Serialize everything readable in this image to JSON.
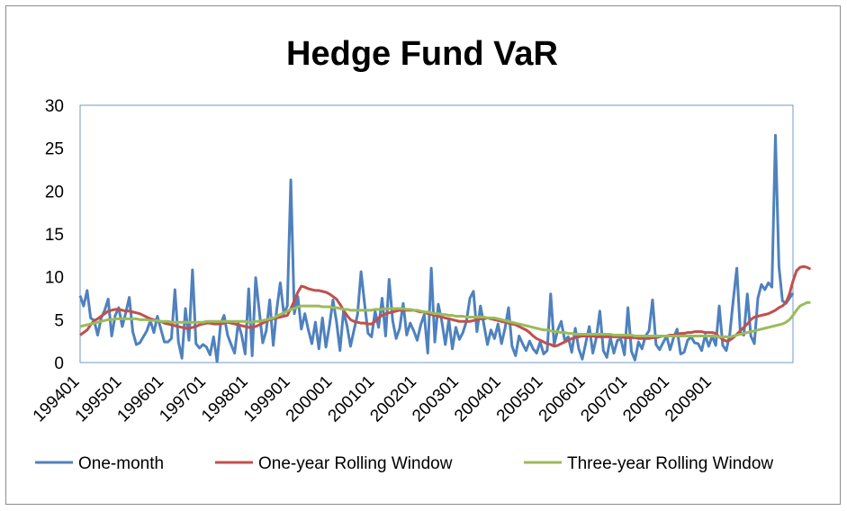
{
  "chart_data": {
    "type": "line",
    "title": "Hedge Fund VaR",
    "xlabel": "",
    "ylabel": "",
    "ylim": [
      0,
      30
    ],
    "y_ticks": [
      0,
      5,
      10,
      15,
      20,
      25,
      30
    ],
    "x_start": "199401",
    "x_end": "200912",
    "x_tick_labels": [
      "199401",
      "199501",
      "199601",
      "199701",
      "199801",
      "199901",
      "200001",
      "200101",
      "200201",
      "200301",
      "200401",
      "200501",
      "200601",
      "200701",
      "200801",
      "200901"
    ],
    "grid": false,
    "legend_position": "bottom",
    "series": [
      {
        "name": "One-month",
        "color": "#4f81bd",
        "values": [
          7.8,
          6.6,
          8.4,
          5.2,
          4.9,
          3.2,
          5.2,
          6.1,
          7.4,
          3.1,
          5.5,
          6.4,
          4.2,
          5.8,
          7.6,
          3.6,
          2.1,
          2.3,
          3.0,
          3.7,
          4.9,
          3.5,
          5.4,
          3.9,
          2.4,
          2.4,
          2.8,
          8.5,
          2.4,
          0.5,
          6.3,
          2.6,
          10.8,
          2.2,
          1.7,
          2.1,
          1.8,
          0.9,
          3.0,
          0.1,
          4.5,
          5.5,
          3.2,
          2.1,
          1.1,
          4.6,
          3.2,
          1.0,
          8.6,
          0.8,
          9.9,
          6.1,
          2.3,
          3.7,
          7.3,
          2.0,
          6.2,
          9.3,
          5.7,
          6.6,
          21.3,
          5.7,
          7.7,
          3.9,
          5.7,
          3.8,
          2.2,
          4.7,
          1.6,
          5.2,
          1.8,
          4.3,
          7.3,
          4.8,
          1.4,
          6.0,
          4.3,
          1.9,
          3.8,
          5.6,
          10.6,
          6.9,
          3.4,
          3.0,
          6.0,
          4.1,
          7.5,
          3.1,
          9.7,
          4.9,
          2.8,
          4.0,
          6.9,
          3.2,
          4.6,
          3.7,
          2.6,
          4.4,
          5.6,
          1.1,
          11.0,
          2.4,
          6.8,
          4.8,
          2.1,
          5.0,
          1.6,
          4.1,
          2.7,
          3.5,
          4.8,
          7.5,
          8.3,
          3.6,
          6.6,
          4.4,
          2.1,
          3.8,
          2.8,
          4.5,
          2.2,
          4.0,
          6.4,
          1.9,
          0.8,
          3.1,
          2.2,
          1.4,
          2.5,
          1.6,
          1.1,
          2.4,
          1.0,
          1.4,
          8.0,
          2.1,
          3.8,
          4.8,
          2.6,
          3.0,
          1.2,
          4.0,
          1.6,
          0.4,
          2.3,
          4.2,
          1.1,
          2.9,
          6.0,
          1.4,
          0.6,
          2.9,
          1.1,
          2.6,
          2.7,
          0.9,
          6.4,
          1.3,
          0.3,
          2.4,
          1.6,
          3.1,
          3.7,
          7.3,
          2.1,
          1.5,
          2.3,
          3.1,
          1.5,
          2.9,
          3.9,
          1.0,
          1.2,
          2.6,
          3.0,
          2.3,
          2.2,
          1.4,
          3.2,
          1.9,
          3.1,
          2.0,
          6.6,
          2.0,
          1.4,
          3.3,
          7.3,
          11.0,
          3.5,
          3.2,
          8.0,
          3.1,
          2.2,
          7.5,
          9.1,
          8.5,
          9.3,
          8.8,
          26.5,
          11.2,
          7.2,
          6.9,
          7.5,
          8.1
        ]
      },
      {
        "name": "One-year Rolling Window",
        "color": "#c0504d",
        "values": [
          3.2,
          3.5,
          3.8,
          4.4,
          4.9,
          5.1,
          5.4,
          5.7,
          6.0,
          6.1,
          6.2,
          6.2,
          6.1,
          6.0,
          6.0,
          5.9,
          5.8,
          5.7,
          5.5,
          5.3,
          5.1,
          5.0,
          4.9,
          4.8,
          4.6,
          4.5,
          4.4,
          4.3,
          4.2,
          4.1,
          4.0,
          4.0,
          4.1,
          4.2,
          4.4,
          4.5,
          4.6,
          4.6,
          4.5,
          4.5,
          4.5,
          4.6,
          4.7,
          4.6,
          4.5,
          4.4,
          4.3,
          4.2,
          4.1,
          4.1,
          4.2,
          4.4,
          4.6,
          4.8,
          5.0,
          5.1,
          5.2,
          5.3,
          5.4,
          5.5,
          6.3,
          7.2,
          8.2,
          8.9,
          8.8,
          8.6,
          8.5,
          8.4,
          8.4,
          8.3,
          8.2,
          8.0,
          7.7,
          7.4,
          6.8,
          6.1,
          5.5,
          5.0,
          4.8,
          4.7,
          4.6,
          4.6,
          4.5,
          4.5,
          4.8,
          5.2,
          5.5,
          5.7,
          5.8,
          5.9,
          6.0,
          6.1,
          6.1,
          6.1,
          6.1,
          6.1,
          6.0,
          5.9,
          5.9,
          5.7,
          5.6,
          5.5,
          5.4,
          5.3,
          5.2,
          5.1,
          5.0,
          4.9,
          4.8,
          4.8,
          4.8,
          4.8,
          4.9,
          5.0,
          5.1,
          5.1,
          5.2,
          5.1,
          5.0,
          4.9,
          4.8,
          4.7,
          4.6,
          4.5,
          4.4,
          4.2,
          4.0,
          3.8,
          3.5,
          3.1,
          2.8,
          2.6,
          2.4,
          2.2,
          2.1,
          1.9,
          2.0,
          2.2,
          2.4,
          2.6,
          2.8,
          2.9,
          3.0,
          3.1,
          3.1,
          3.1,
          3.1,
          3.0,
          3.0,
          3.0,
          3.0,
          3.0,
          3.0,
          3.0,
          3.0,
          2.9,
          2.9,
          2.9,
          2.9,
          2.8,
          2.8,
          2.8,
          2.8,
          2.9,
          2.9,
          3.0,
          3.1,
          3.1,
          3.2,
          3.2,
          3.3,
          3.4,
          3.4,
          3.5,
          3.5,
          3.6,
          3.6,
          3.6,
          3.5,
          3.5,
          3.5,
          3.4,
          3.0,
          2.7,
          2.5,
          2.6,
          2.9,
          3.3,
          3.7,
          4.1,
          4.5,
          5.0,
          5.3,
          5.4,
          5.5,
          5.6,
          5.7,
          5.9,
          6.1,
          6.4,
          6.6,
          7.0,
          8.0,
          9.5,
          10.7,
          11.1,
          11.2,
          11.1,
          10.9
        ]
      },
      {
        "name": "Three-year Rolling Window",
        "color": "#9bbb59",
        "values": [
          4.2,
          4.3,
          4.4,
          4.5,
          4.6,
          4.7,
          4.8,
          4.9,
          5.0,
          5.0,
          5.1,
          5.1,
          5.1,
          5.1,
          5.1,
          5.1,
          5.1,
          5.0,
          5.0,
          5.0,
          4.9,
          4.9,
          4.9,
          4.8,
          4.8,
          4.8,
          4.7,
          4.7,
          4.7,
          4.7,
          4.7,
          4.7,
          4.7,
          4.7,
          4.7,
          4.7,
          4.8,
          4.8,
          4.8,
          4.8,
          4.8,
          4.8,
          4.8,
          4.8,
          4.8,
          4.8,
          4.8,
          4.8,
          4.7,
          4.7,
          4.8,
          4.8,
          4.9,
          5.0,
          5.1,
          5.2,
          5.4,
          5.6,
          5.8,
          6.0,
          6.2,
          6.3,
          6.5,
          6.6,
          6.6,
          6.6,
          6.6,
          6.6,
          6.6,
          6.5,
          6.5,
          6.5,
          6.4,
          6.4,
          6.3,
          6.2,
          6.2,
          6.1,
          6.1,
          6.1,
          6.1,
          6.1,
          6.1,
          6.1,
          6.2,
          6.2,
          6.2,
          6.3,
          6.3,
          6.3,
          6.3,
          6.3,
          6.3,
          6.2,
          6.2,
          6.1,
          6.1,
          6.0,
          5.9,
          5.9,
          5.8,
          5.7,
          5.7,
          5.6,
          5.6,
          5.5,
          5.5,
          5.4,
          5.4,
          5.4,
          5.3,
          5.3,
          5.3,
          5.3,
          5.3,
          5.3,
          5.2,
          5.2,
          5.2,
          5.1,
          5.0,
          4.9,
          4.8,
          4.7,
          4.6,
          4.5,
          4.4,
          4.3,
          4.2,
          4.1,
          4.0,
          3.9,
          3.8,
          3.8,
          3.7,
          3.6,
          3.6,
          3.5,
          3.5,
          3.4,
          3.4,
          3.3,
          3.3,
          3.3,
          3.3,
          3.3,
          3.3,
          3.3,
          3.3,
          3.3,
          3.3,
          3.3,
          3.2,
          3.2,
          3.2,
          3.2,
          3.2,
          3.2,
          3.1,
          3.1,
          3.1,
          3.1,
          3.1,
          3.1,
          3.1,
          3.1,
          3.1,
          3.1,
          3.1,
          3.1,
          3.1,
          3.1,
          3.1,
          3.1,
          3.1,
          3.1,
          3.1,
          3.1,
          3.1,
          3.1,
          3.1,
          3.1,
          3.0,
          3.0,
          3.0,
          3.0,
          3.1,
          3.2,
          3.3,
          3.4,
          3.5,
          3.6,
          3.7,
          3.8,
          3.9,
          4.0,
          4.1,
          4.2,
          4.3,
          4.4,
          4.5,
          4.7,
          5.0,
          5.5,
          6.1,
          6.6,
          6.8,
          7.0,
          7.0
        ]
      }
    ]
  }
}
